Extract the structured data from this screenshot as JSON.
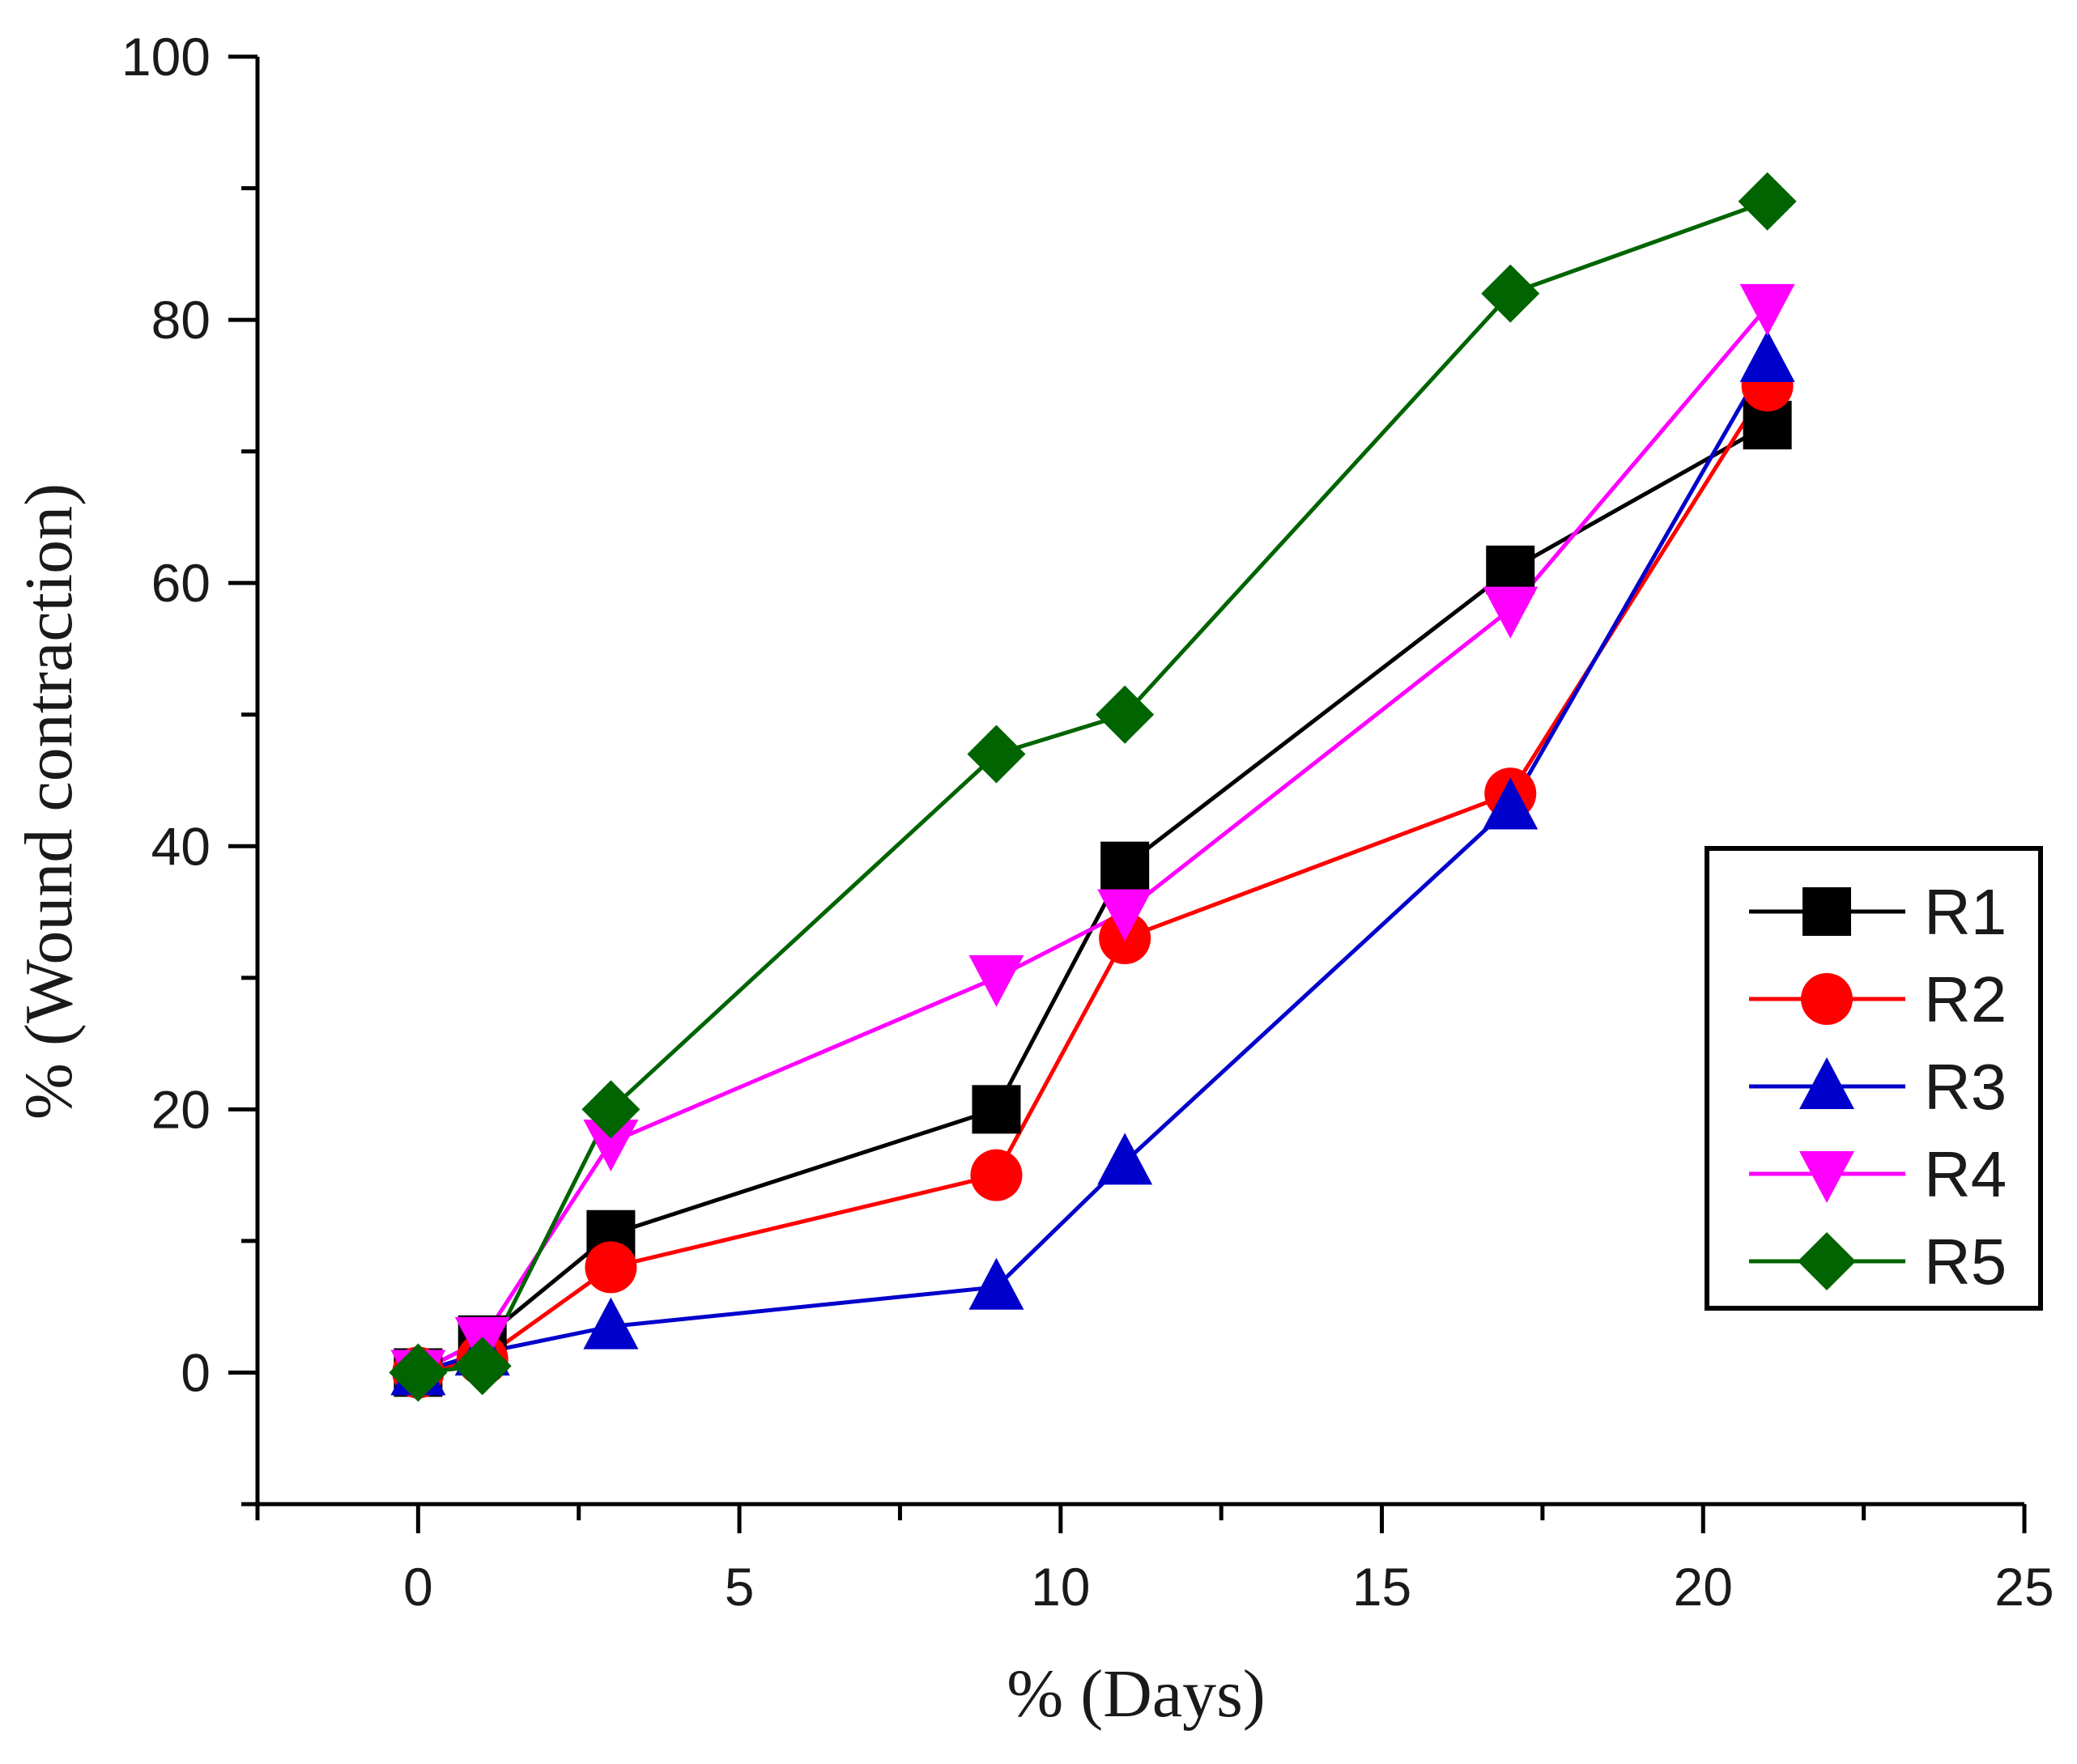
{
  "chart_data": {
    "type": "line",
    "title": "",
    "xlabel": "% (Days)",
    "ylabel": "% (Wound contraction)",
    "xlim": [
      -2.5,
      25
    ],
    "ylim": [
      -10,
      100
    ],
    "xticks": [
      0,
      5,
      10,
      15,
      20,
      25
    ],
    "yticks": [
      0,
      20,
      40,
      60,
      80,
      100
    ],
    "x_tick_labels": [
      "0",
      "5",
      "10",
      "15",
      "20",
      "25"
    ],
    "y_tick_labels": [
      "0",
      "20",
      "40",
      "60",
      "80",
      "100"
    ],
    "legend_position": "right",
    "x": [
      0,
      1,
      3,
      9,
      11,
      17,
      21
    ],
    "series": [
      {
        "name": "R1",
        "color": "#000000",
        "marker": "square",
        "values": [
          0,
          2.5,
          10.5,
          20,
          38.5,
          61,
          72
        ]
      },
      {
        "name": "R2",
        "color": "#ff0000",
        "marker": "circle",
        "values": [
          0,
          1,
          8,
          15,
          33,
          44,
          75
        ]
      },
      {
        "name": "R3",
        "color": "#0000cc",
        "marker": "triangle-up",
        "values": [
          0,
          1.5,
          3.5,
          6.5,
          16,
          43,
          77
        ]
      },
      {
        "name": "R4",
        "color": "#ff00ff",
        "marker": "triangle-down",
        "values": [
          0,
          2.5,
          17.5,
          30,
          35,
          58,
          81
        ]
      },
      {
        "name": "R5",
        "color": "#006400",
        "marker": "diamond",
        "values": [
          0,
          0.5,
          20,
          47,
          50,
          82,
          89
        ]
      }
    ]
  }
}
